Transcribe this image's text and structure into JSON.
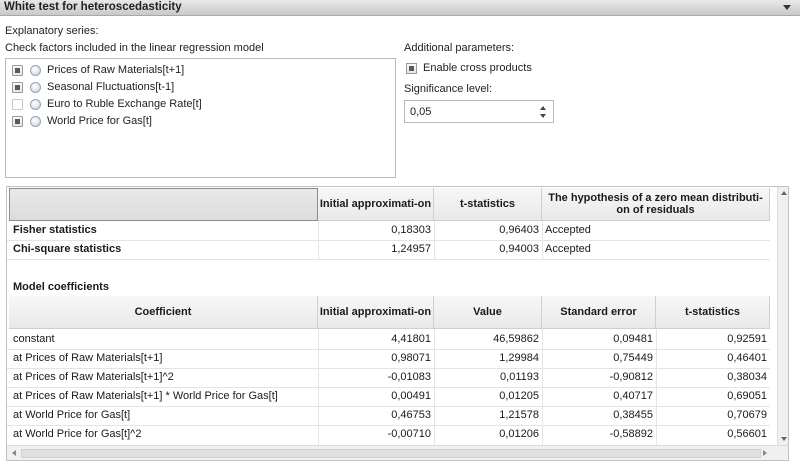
{
  "panel": {
    "title": "White test for heteroscedasticity"
  },
  "left": {
    "series_label": "Explanatory series:",
    "instruction": "Check factors included in the linear regression model",
    "factors": [
      {
        "name": "Prices of Raw Materials[t+1]",
        "checked": true
      },
      {
        "name": "Seasonal Fluctuations[t-1]",
        "checked": true
      },
      {
        "name": "Euro to Ruble Exchange Rate[t]",
        "checked": false
      },
      {
        "name": "World Price for Gas[t]",
        "checked": true
      }
    ]
  },
  "right": {
    "params_label": "Additional parameters:",
    "cross_products_label": "Enable cross products",
    "significance_label": "Significance level:",
    "significance_value": "0,05"
  },
  "tests": {
    "headers": [
      "",
      "Initial approximati-on",
      "t-statistics",
      "The hypothesis of a zero mean distributi-on of residuals"
    ],
    "rows": [
      {
        "name": "Fisher statistics",
        "initial": "0,18303",
        "t_stat": "0,96403",
        "hypothesis": "Accepted"
      },
      {
        "name": "Chi-square statistics",
        "initial": "1,24957",
        "t_stat": "0,94003",
        "hypothesis": "Accepted"
      }
    ]
  },
  "coefficients": {
    "section_title": "Model coefficients",
    "headers": [
      "Coefficient",
      "Initial approximati-on",
      "Value",
      "Standard error",
      "t-statistics"
    ],
    "rows": [
      {
        "name": "constant",
        "initial": "4,41801",
        "value": "46,59862",
        "std_error": "0,09481",
        "t_stat": "0,92591"
      },
      {
        "name": "at Prices of Raw Materials[t+1]",
        "initial": "0,98071",
        "value": "1,29984",
        "std_error": "0,75449",
        "t_stat": "0,46401"
      },
      {
        "name": "at Prices of Raw Materials[t+1]^2",
        "initial": "-0,01083",
        "value": "0,01193",
        "std_error": "-0,90812",
        "t_stat": "0,38034"
      },
      {
        "name": "at Prices of Raw Materials[t+1] * World Price for Gas[t]",
        "initial": "0,00491",
        "value": "0,01205",
        "std_error": "0,40717",
        "t_stat": "0,69051"
      },
      {
        "name": "at World Price for Gas[t]",
        "initial": "0,46753",
        "value": "1,21578",
        "std_error": "0,38455",
        "t_stat": "0,70679"
      },
      {
        "name": "at World Price for Gas[t]^2",
        "initial": "-0,00710",
        "value": "0,01206",
        "std_error": "-0,58892",
        "t_stat": "0,56601"
      }
    ]
  }
}
